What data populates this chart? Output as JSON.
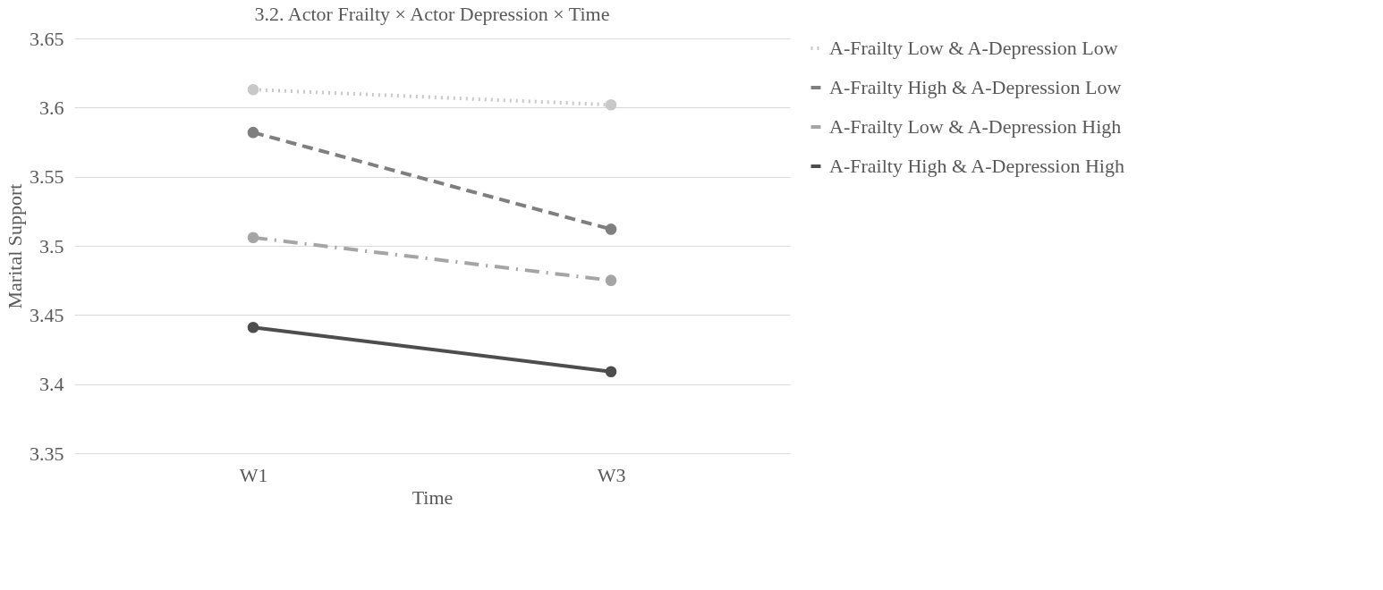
{
  "chart_data": {
    "type": "line",
    "title": "3.2. Actor Frailty × Actor Depression × Time",
    "xlabel": "Time",
    "ylabel": "Marital Support",
    "categories": [
      "W1",
      "W3"
    ],
    "series": [
      {
        "name": "A-Frailty Low & A-Depression Low",
        "color": "#c8c8c8",
        "values": [
          3.613,
          3.602
        ],
        "line_style": "dotted"
      },
      {
        "name": "A-Frailty High & A-Depression Low",
        "color": "#7f7f7f",
        "values": [
          3.582,
          3.512
        ],
        "line_style": "dashed"
      },
      {
        "name": "A-Frailty Low & A-Depression High",
        "color": "#a5a5a5",
        "values": [
          3.506,
          3.475
        ],
        "line_style": "dashdot"
      },
      {
        "name": "A-Frailty High & A-Depression High",
        "color": "#4d4d4d",
        "values": [
          3.441,
          3.409
        ],
        "line_style": "solid"
      }
    ],
    "ylim": [
      3.35,
      3.65
    ],
    "yticks": [
      3.35,
      3.4,
      3.45,
      3.5,
      3.55,
      3.6,
      3.65
    ],
    "grid": "y",
    "legend": "right",
    "marker": "circle"
  }
}
